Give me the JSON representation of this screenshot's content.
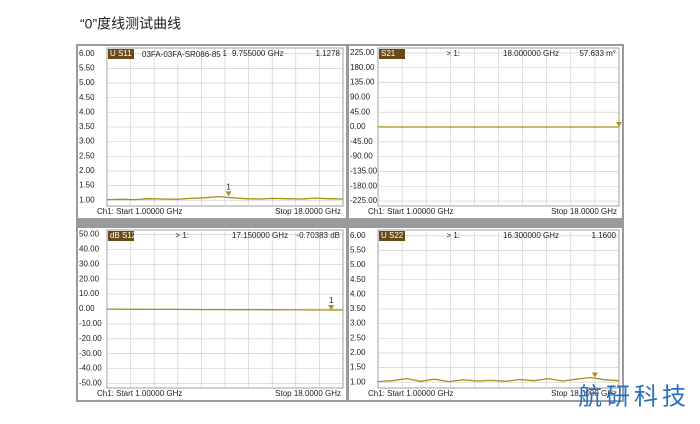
{
  "header": {
    "title": "“0”度线测试曲线"
  },
  "watermark": "航研科技",
  "chart_data": [
    {
      "type": "line",
      "trace": "U S11",
      "trace_name": "03FA-03FA-SR086-85",
      "marker_ref": "1",
      "marker": {
        "x": 9.755,
        "y": 1.1278,
        "x_label": "9.755000 GHz",
        "y_label": "1.1278",
        "tag": "1"
      },
      "start_label": "Ch1: Start  1.00000 GHz",
      "stop_label": "Stop 18.0000 GHz",
      "xlim": [
        1,
        18
      ],
      "ylim": [
        0.8,
        6.2
      ],
      "yticks": [
        {
          "value": 6,
          "label": "6.00"
        },
        {
          "value": 5.5,
          "label": "5.50"
        },
        {
          "value": 5,
          "label": "5.00"
        },
        {
          "value": 4.5,
          "label": "4.50"
        },
        {
          "value": 4,
          "label": "4.00"
        },
        {
          "value": 3.5,
          "label": "3.50"
        },
        {
          "value": 3,
          "label": "3.00"
        },
        {
          "value": 2.5,
          "label": "2.50"
        },
        {
          "value": 2,
          "label": "2.00"
        },
        {
          "value": 1.5,
          "label": "1.50"
        },
        {
          "value": 1,
          "label": "1.00"
        }
      ],
      "grid": true,
      "color": "#a8901c",
      "x": [
        1,
        2,
        3,
        4,
        5,
        6,
        7,
        8,
        9,
        10,
        11,
        12,
        13,
        14,
        15,
        16,
        17,
        18
      ],
      "values": [
        1.02,
        1.03,
        1.02,
        1.05,
        1.04,
        1.03,
        1.06,
        1.08,
        1.12,
        1.08,
        1.05,
        1.04,
        1.06,
        1.05,
        1.04,
        1.07,
        1.05,
        1.04
      ]
    },
    {
      "type": "line",
      "trace": "S21",
      "marker_ref": "> 1:",
      "marker": {
        "x": 18,
        "y": 0.057633,
        "x_label": "18.000000 GHz",
        "y_label": "57.633 m°"
      },
      "start_label": "Ch1: Start  1.00000 GHz",
      "stop_label": "Stop 18.0000 GHz",
      "xlim": [
        1,
        18
      ],
      "ylim": [
        -240,
        240
      ],
      "yticks": [
        {
          "value": 225,
          "label": "225.00"
        },
        {
          "value": 180,
          "label": "180.00"
        },
        {
          "value": 135,
          "label": "135.00"
        },
        {
          "value": 90,
          "label": "90.00"
        },
        {
          "value": 45,
          "label": "45.00"
        },
        {
          "value": 0,
          "label": "0.00"
        },
        {
          "value": -45,
          "label": "-45.00"
        },
        {
          "value": -90,
          "label": "-90.00"
        },
        {
          "value": -135,
          "label": "-135.00"
        },
        {
          "value": -180,
          "label": "-180.00"
        },
        {
          "value": -225,
          "label": "-225.00"
        }
      ],
      "grid": true,
      "color": "#a8901c",
      "x": [
        1,
        2,
        3,
        4,
        5,
        6,
        7,
        8,
        9,
        10,
        11,
        12,
        13,
        14,
        15,
        16,
        17,
        18
      ],
      "values": [
        0.2,
        0.1,
        0,
        -0.1,
        0,
        0.1,
        0,
        -0.1,
        0,
        0.1,
        0,
        0,
        -0.1,
        0,
        0.1,
        0,
        0,
        0.06
      ]
    },
    {
      "type": "line",
      "trace": "dB S12",
      "marker_ref": "> 1:",
      "marker": {
        "x": 17.15,
        "y": -0.70383,
        "x_label": "17.150000 GHz",
        "y_label": "-0.70383 dB",
        "tag": "1"
      },
      "start_label": "Ch1: Start  1.00000 GHz",
      "stop_label": "Stop 18.0000 GHz",
      "xlim": [
        1,
        18
      ],
      "ylim": [
        -53,
        53
      ],
      "yticks": [
        {
          "value": 50,
          "label": "50.00"
        },
        {
          "value": 40,
          "label": "40.00"
        },
        {
          "value": 30,
          "label": "30.00"
        },
        {
          "value": 20,
          "label": "20.00"
        },
        {
          "value": 10,
          "label": "10.00"
        },
        {
          "value": 0,
          "label": "0.00"
        },
        {
          "value": -10,
          "label": "-10.00"
        },
        {
          "value": -20,
          "label": "-20.00"
        },
        {
          "value": -30,
          "label": "-30.00"
        },
        {
          "value": -40,
          "label": "-40.00"
        },
        {
          "value": -50,
          "label": "-50.00"
        }
      ],
      "grid": true,
      "color": "#a8901c",
      "x": [
        1,
        2,
        3,
        4,
        5,
        6,
        7,
        8,
        9,
        10,
        11,
        12,
        13,
        14,
        15,
        16,
        17,
        18
      ],
      "values": [
        -0.1,
        -0.15,
        -0.2,
        -0.25,
        -0.3,
        -0.3,
        -0.35,
        -0.4,
        -0.4,
        -0.45,
        -0.5,
        -0.5,
        -0.55,
        -0.6,
        -0.6,
        -0.65,
        -0.7,
        -0.75
      ]
    },
    {
      "type": "line",
      "trace": "U S22",
      "marker_ref": "> 1:",
      "marker": {
        "x": 16.3,
        "y": 1.16,
        "x_label": "16.300000 GHz",
        "y_label": "1.1600"
      },
      "start_label": "Ch1: Start  1.00000 GHz",
      "stop_label": "Stop 18.0000 GHz",
      "xlim": [
        1,
        18
      ],
      "ylim": [
        0.8,
        6.2
      ],
      "yticks": [
        {
          "value": 6,
          "label": "6.00"
        },
        {
          "value": 5.5,
          "label": "5.50"
        },
        {
          "value": 5,
          "label": "5.00"
        },
        {
          "value": 4.5,
          "label": "4.50"
        },
        {
          "value": 4,
          "label": "4.00"
        },
        {
          "value": 3.5,
          "label": "3.50"
        },
        {
          "value": 3,
          "label": "3.00"
        },
        {
          "value": 2.5,
          "label": "2.50"
        },
        {
          "value": 2,
          "label": "2.00"
        },
        {
          "value": 1.5,
          "label": "1.50"
        },
        {
          "value": 1,
          "label": "1.00"
        }
      ],
      "grid": true,
      "color": "#a8901c",
      "x": [
        1,
        2,
        3,
        4,
        5,
        6,
        7,
        8,
        9,
        10,
        11,
        12,
        13,
        14,
        15,
        16,
        17,
        18
      ],
      "values": [
        1.02,
        1.05,
        1.12,
        1.03,
        1.1,
        1.02,
        1.08,
        1.04,
        1.06,
        1.03,
        1.09,
        1.05,
        1.12,
        1.04,
        1.1,
        1.16,
        1.08,
        1.05
      ]
    }
  ]
}
